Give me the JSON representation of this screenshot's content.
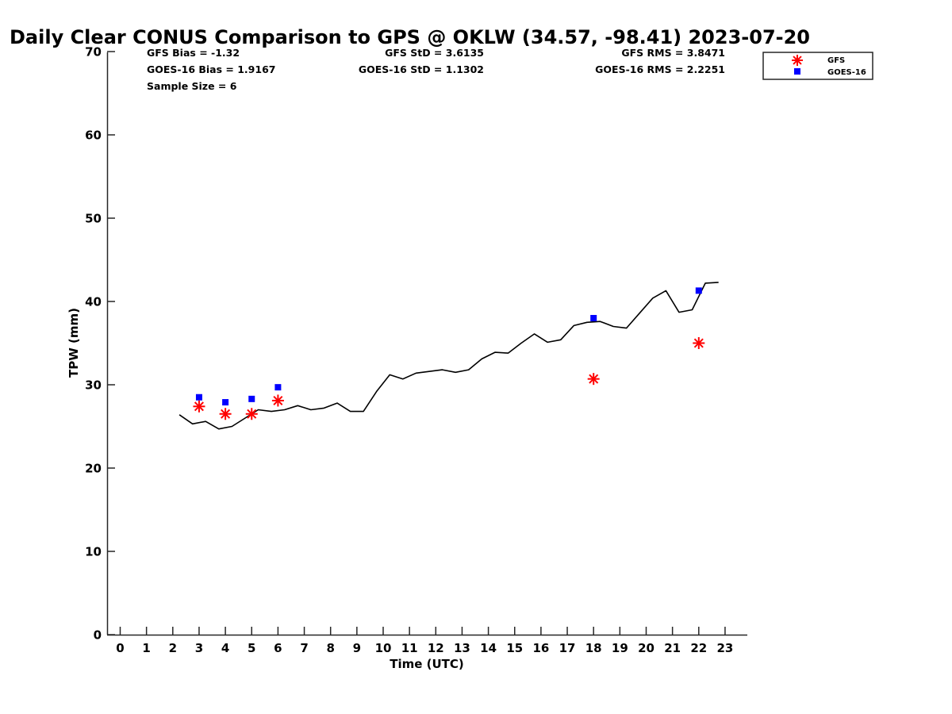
{
  "chart_data": {
    "type": "line",
    "title": "Daily Clear CONUS Comparison to GPS @ OKLW (34.57, -98.41) 2023-07-20",
    "xlabel": "Time (UTC)",
    "ylabel": "TPW (mm)",
    "xlim": [
      -0.5,
      23.7
    ],
    "ylim": [
      0,
      70
    ],
    "xticks": [
      0,
      1,
      2,
      3,
      4,
      5,
      6,
      7,
      8,
      9,
      10,
      11,
      12,
      13,
      14,
      15,
      16,
      17,
      18,
      19,
      20,
      21,
      22,
      23
    ],
    "yticks": [
      0,
      10,
      20,
      30,
      40,
      50,
      60,
      70
    ],
    "stats": {
      "gfs_bias": "GFS Bias = -1.32",
      "goes_bias": "GOES-16 Bias = 1.9167",
      "sample_size": "Sample Size = 6",
      "gfs_std": "GFS StD = 3.6135",
      "goes_std": "GOES-16 StD = 1.1302",
      "gfs_rms": "GFS RMS = 3.8471",
      "goes_rms": "GOES-16 RMS = 2.2251"
    },
    "legend": {
      "position": "top-right",
      "entries": [
        "GFS",
        "GOES-16"
      ]
    },
    "colors": {
      "gps": "#000000",
      "gfs": "#ff0000",
      "goes": "#0000ff"
    },
    "series": [
      {
        "marker": "line",
        "x": [
          2.25,
          2.75,
          3.25,
          3.75,
          4.25,
          4.75,
          5.25,
          5.75,
          6.25,
          6.75,
          7.25,
          7.75,
          8.25,
          8.75,
          9.25,
          9.75,
          10.25,
          10.75,
          11.25,
          11.75,
          12.25,
          12.75,
          13.25,
          13.75,
          14.25,
          14.75,
          15.25,
          15.75,
          16.25,
          16.75,
          17.25,
          17.75,
          18.25,
          18.75,
          19.25,
          19.75,
          20.25,
          20.75,
          21.25,
          21.75,
          22.25,
          22.75
        ],
        "y": [
          26.4,
          25.3,
          25.6,
          24.7,
          25.0,
          26.0,
          27.0,
          26.8,
          27.0,
          27.5,
          27.0,
          27.2,
          27.8,
          26.8,
          26.8,
          29.2,
          31.2,
          30.7,
          31.4,
          31.6,
          31.8,
          31.5,
          31.8,
          33.1,
          33.9,
          33.8,
          35.0,
          36.1,
          35.1,
          35.4,
          37.1,
          37.5,
          37.6,
          37.0,
          36.8,
          38.6,
          40.4,
          41.3,
          38.7,
          39.0,
          42.2,
          42.3
        ]
      },
      {
        "name": "GFS",
        "marker": "asterisk",
        "x": [
          3,
          4,
          5,
          6,
          18,
          22
        ],
        "y": [
          27.4,
          26.5,
          26.5,
          28.1,
          30.7,
          35.0
        ]
      },
      {
        "name": "GOES-16",
        "marker": "square",
        "x": [
          3,
          4,
          5,
          6,
          18,
          22
        ],
        "y": [
          28.5,
          27.9,
          28.3,
          29.7,
          38.0,
          41.3
        ]
      }
    ]
  }
}
